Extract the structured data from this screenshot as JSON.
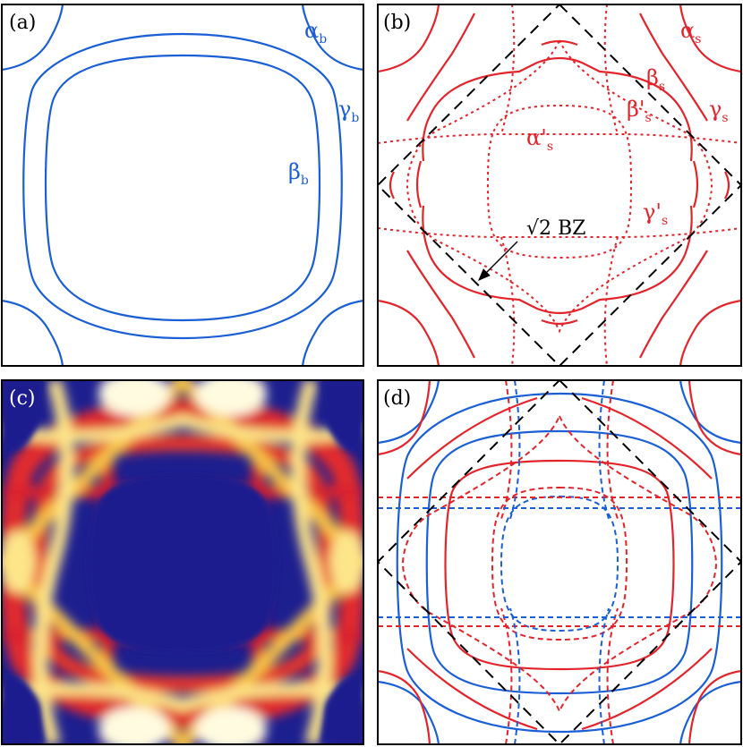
{
  "panels": {
    "a": {
      "label": "(a)",
      "band_labels": [
        {
          "symbol": "α",
          "sub": "b"
        },
        {
          "symbol": "γ",
          "sub": "b"
        },
        {
          "symbol": "β",
          "sub": "b"
        }
      ]
    },
    "b": {
      "label": "(b)",
      "band_labels": [
        {
          "symbol": "α",
          "sub": "s"
        },
        {
          "symbol": "β",
          "sub": "s"
        },
        {
          "symbol": "β'",
          "sub": "s"
        },
        {
          "symbol": "γ",
          "sub": "s"
        },
        {
          "symbol": "α'",
          "sub": "s"
        },
        {
          "symbol": "γ'",
          "sub": "s"
        }
      ],
      "bz_annotation": "√2 BZ"
    },
    "c": {
      "label": "(c)"
    },
    "d": {
      "label": "(d)"
    }
  },
  "colors": {
    "bulk": "#1a5fd6",
    "surface": "#e3242b",
    "bz": "#000000",
    "heatmap_background": "#1d1f8f"
  }
}
